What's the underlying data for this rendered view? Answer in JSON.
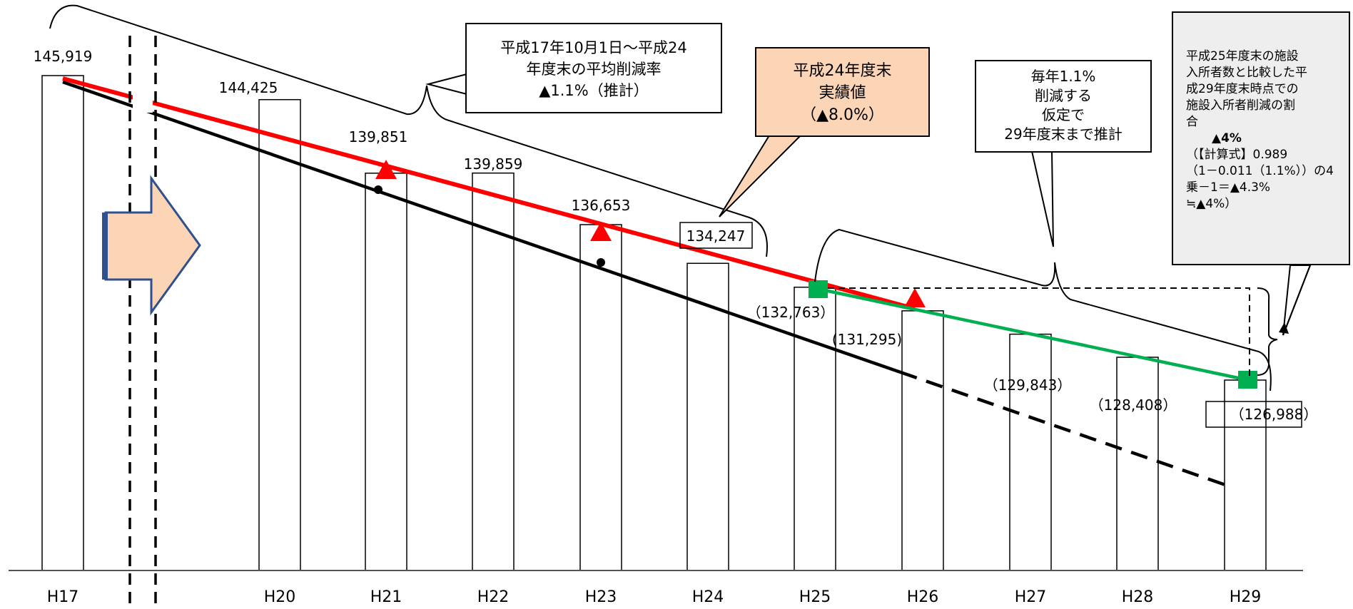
{
  "chart_data": {
    "type": "bar",
    "categories": [
      "H17",
      "H20",
      "H21",
      "H22",
      "H23",
      "H24",
      "H25",
      "H26",
      "H27",
      "H28",
      "H29"
    ],
    "values": [
      145919,
      144425,
      139851,
      139859,
      136653,
      134247,
      132763,
      131295,
      129843,
      128408,
      126988
    ],
    "value_labels": [
      "145,919",
      "144,425",
      "139,851",
      "139,859",
      "136,653",
      "134,247",
      "（132,763）",
      "(131,295)",
      "（129,843）",
      "（128,408）",
      "（126,988）"
    ],
    "ylim": [
      0,
      150000
    ],
    "grid": false,
    "series": [
      {
        "color": "#ff0000",
        "style": "solid",
        "marker": "triangle",
        "points": [
          [
            "H17",
            145919
          ],
          [
            "H21",
            139851
          ],
          [
            "H23",
            136653
          ],
          [
            "H25",
            132763
          ],
          [
            "H26",
            131295
          ]
        ]
      },
      {
        "color": "#000000",
        "style": "solid-then-dashed",
        "marker": "dot",
        "points": [
          [
            "H17",
            145919
          ],
          [
            "H21",
            139000
          ],
          [
            "H23",
            134800
          ],
          [
            "H26",
            126000
          ],
          [
            "H29",
            119000
          ]
        ]
      },
      {
        "color": "#00b050",
        "style": "solid",
        "marker": "square",
        "points": [
          [
            "H25",
            132763
          ],
          [
            "H29",
            126988
          ]
        ]
      }
    ],
    "annotations": {
      "avg_rate": [
        "平成17年10月1日～平成24",
        "年度末の平均削減率",
        "▲1.1%（推計）"
      ],
      "actual": [
        "平成24年度末",
        "実績値",
        "（▲8.0%）"
      ],
      "assume": [
        "毎年1.1%",
        "削減する",
        "仮定で",
        "29年度末まで推計"
      ],
      "ratio": [
        "平成25年度末の施設",
        "入所者数と比較した平",
        "成29年度末時点での",
        "施設入所者削減の割",
        "合",
        "▲4%",
        "（【計算式】0.989",
        "（1－0.011（1.1%））の4",
        "乗－1＝▲4.3%",
        "≒▲4%）"
      ]
    }
  },
  "colors": {
    "red": "#ff0000",
    "green": "#00b050",
    "black": "#000000",
    "arrow_fill": "#fbd5b5",
    "arrow_border": "#2f4f8f",
    "actual_fill": "#fbd5b5",
    "ratio_fill": "#eeeeee"
  }
}
